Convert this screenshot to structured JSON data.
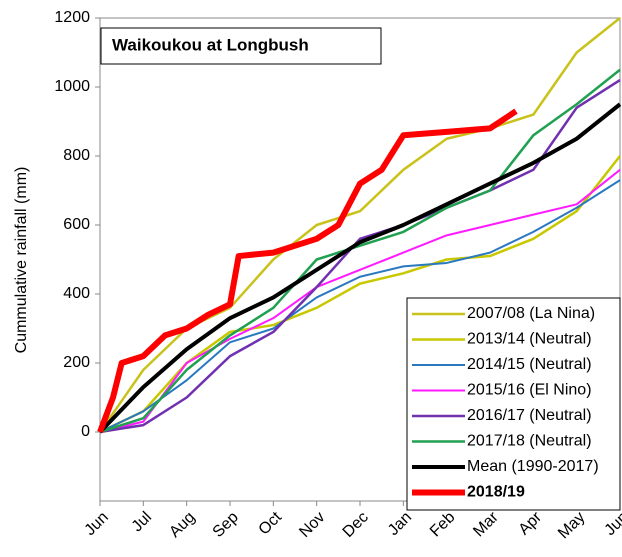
{
  "chart_data": {
    "type": "line",
    "title": "Waikoukou at Longbush",
    "y_label": "Cummulative rainfall (mm)",
    "xlim": [
      0,
      12
    ],
    "xticks": [
      {
        "value": 0,
        "label": "Jun"
      },
      {
        "value": 1,
        "label": "Jul"
      },
      {
        "value": 2,
        "label": "Aug"
      },
      {
        "value": 3,
        "label": "Sep"
      },
      {
        "value": 4,
        "label": "Oct"
      },
      {
        "value": 5,
        "label": "Nov"
      },
      {
        "value": 6,
        "label": "Dec"
      },
      {
        "value": 7,
        "label": "Jan"
      },
      {
        "value": 8,
        "label": "Feb"
      },
      {
        "value": 9,
        "label": "Mar"
      },
      {
        "value": 10,
        "label": "Apr"
      },
      {
        "value": 11,
        "label": "May"
      },
      {
        "value": 12,
        "label": "Jun"
      }
    ],
    "ylim": [
      -200,
      1200
    ],
    "yticks": [
      0,
      200,
      400,
      600,
      800,
      1000,
      1200
    ],
    "x": [
      0,
      1,
      2,
      3,
      4,
      5,
      6,
      7,
      8,
      9,
      10,
      11,
      12
    ],
    "series": [
      {
        "name": "2007/08 (La Nina)",
        "color": "#c9c21a",
        "width": 2.5,
        "values": [
          0,
          180,
          300,
          360,
          500,
          600,
          640,
          760,
          850,
          880,
          920,
          1100,
          1200
        ]
      },
      {
        "name": "2013/14 (Neutral)",
        "color": "#c8c800",
        "width": 2.5,
        "values": [
          0,
          60,
          200,
          290,
          310,
          360,
          430,
          460,
          500,
          510,
          560,
          640,
          800
        ]
      },
      {
        "name": "2014/15 (Neutral)",
        "color": "#2a78c0",
        "width": 2,
        "values": [
          0,
          60,
          150,
          260,
          300,
          390,
          450,
          480,
          490,
          520,
          580,
          650,
          730
        ]
      },
      {
        "name": "2015/16 (El Nino)",
        "color": "#ff1aff",
        "width": 2,
        "values": [
          0,
          30,
          200,
          270,
          330,
          420,
          470,
          520,
          570,
          600,
          630,
          660,
          760
        ]
      },
      {
        "name": "2016/17 (Neutral)",
        "color": "#7030b0",
        "width": 2.5,
        "values": [
          0,
          20,
          100,
          220,
          290,
          420,
          560,
          600,
          650,
          700,
          760,
          940,
          1020
        ]
      },
      {
        "name": "2017/18 (Neutral)",
        "color": "#20a050",
        "width": 2.5,
        "values": [
          0,
          40,
          180,
          280,
          360,
          500,
          540,
          580,
          650,
          700,
          860,
          950,
          1050
        ]
      },
      {
        "name": "Mean (1990-2017)",
        "color": "#000000",
        "width": 4,
        "values": [
          0,
          130,
          240,
          330,
          390,
          470,
          550,
          600,
          660,
          720,
          780,
          850,
          950
        ]
      },
      {
        "name": "2018/19",
        "color": "#ff0000",
        "width": 6,
        "bold": true,
        "x": [
          0,
          0.3,
          0.5,
          1,
          1.5,
          2,
          2.5,
          3,
          3.2,
          4,
          5,
          5.5,
          6,
          6.5,
          7,
          8,
          9,
          9.6
        ],
        "values": [
          0,
          100,
          200,
          220,
          280,
          300,
          340,
          370,
          510,
          520,
          560,
          600,
          720,
          760,
          860,
          870,
          880,
          930
        ]
      }
    ]
  }
}
